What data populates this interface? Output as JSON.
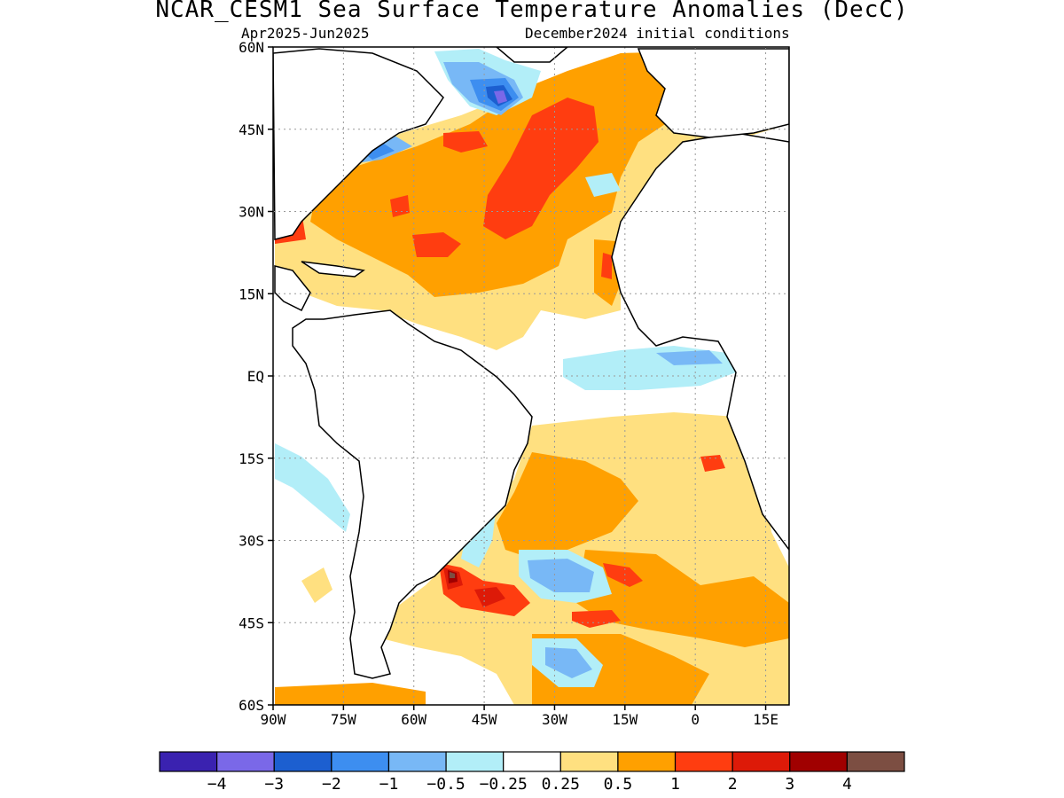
{
  "title": "NCAR_CESM1 Sea Surface Temperature Anomalies (DecC)",
  "subtitle_left": "Apr2025-Jun2025",
  "subtitle_right": "December2024 initial conditions",
  "map": {
    "lon_range": [
      -90,
      20
    ],
    "lat_range": [
      -60,
      60
    ],
    "x_ticks": [
      {
        "lon": -90,
        "label": "90W"
      },
      {
        "lon": -75,
        "label": "75W"
      },
      {
        "lon": -60,
        "label": "60W"
      },
      {
        "lon": -45,
        "label": "45W"
      },
      {
        "lon": -30,
        "label": "30W"
      },
      {
        "lon": -15,
        "label": "15W"
      },
      {
        "lon": 0,
        "label": "0"
      },
      {
        "lon": 15,
        "label": "15E"
      }
    ],
    "y_ticks": [
      {
        "lat": 60,
        "label": "60N"
      },
      {
        "lat": 45,
        "label": "45N"
      },
      {
        "lat": 30,
        "label": "30N"
      },
      {
        "lat": 15,
        "label": "15N"
      },
      {
        "lat": 0,
        "label": "EQ"
      },
      {
        "lat": -15,
        "label": "15S"
      },
      {
        "lat": -30,
        "label": "30S"
      },
      {
        "lat": -45,
        "label": "45S"
      },
      {
        "lat": -60,
        "label": "60S"
      }
    ]
  },
  "colorbar": {
    "colors": [
      "#3a22b0",
      "#7a68e8",
      "#1c5fd0",
      "#3d8ef0",
      "#78b8f6",
      "#b2eef8",
      "#ffffff",
      "#ffe080",
      "#ffa000",
      "#ff3d10",
      "#dd1a08",
      "#a00000",
      "#7c4e42"
    ],
    "labels": [
      "-4",
      "-3",
      "-2",
      "-1",
      "-0.5",
      "-0.25",
      "0.25",
      "0.5",
      "1",
      "2",
      "3",
      "4"
    ]
  },
  "colors": {
    "land": "#ffffff",
    "coastline": "#000000",
    "grid": "#999999"
  }
}
